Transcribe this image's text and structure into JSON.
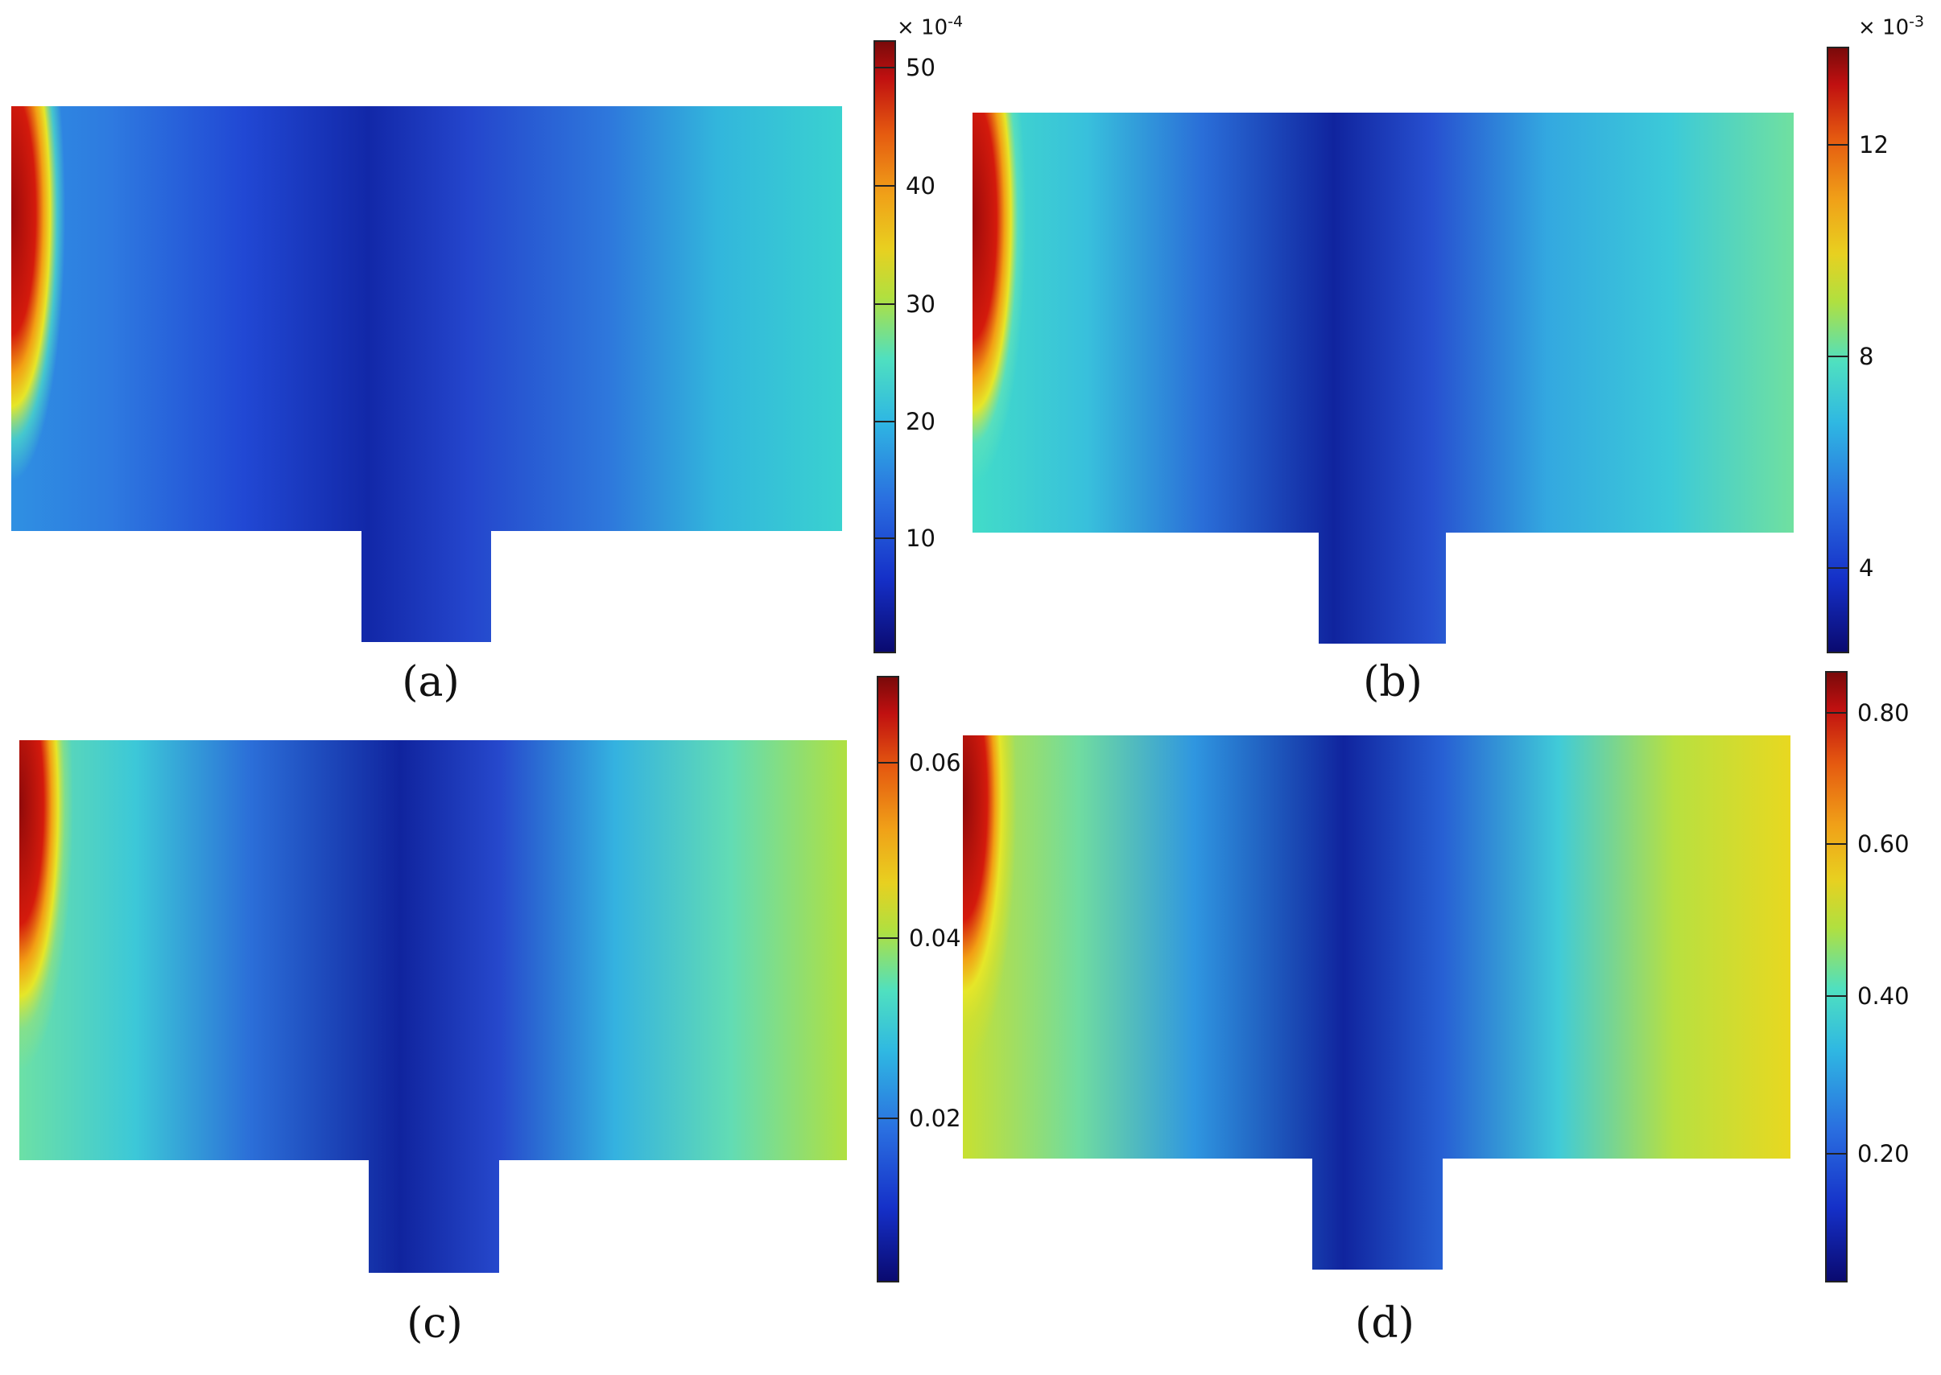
{
  "panels": [
    {
      "label": "(a)",
      "scale": {
        "exponent": "-4",
        "ticks": [
          {
            "text": "50",
            "frac": 0.955
          },
          {
            "text": "40",
            "frac": 0.762
          },
          {
            "text": "30",
            "frac": 0.57
          },
          {
            "text": "20",
            "frac": 0.378
          },
          {
            "text": "10",
            "frac": 0.188
          }
        ]
      }
    },
    {
      "label": "(b)",
      "scale": {
        "exponent": "-3",
        "ticks": [
          {
            "text": "12",
            "frac": 0.838
          },
          {
            "text": "8",
            "frac": 0.489
          },
          {
            "text": "4",
            "frac": 0.14
          }
        ]
      }
    },
    {
      "label": "(c)",
      "scale": {
        "exponent": null,
        "ticks": [
          {
            "text": "0.06",
            "frac": 0.857
          },
          {
            "text": "0.04",
            "frac": 0.568
          },
          {
            "text": "0.02",
            "frac": 0.271
          }
        ]
      }
    },
    {
      "label": "(d)",
      "scale": {
        "exponent": null,
        "ticks": [
          {
            "text": "0.80",
            "frac": 0.932
          },
          {
            "text": "0.60",
            "frac": 0.717
          },
          {
            "text": "0.40",
            "frac": 0.469
          },
          {
            "text": "0.20",
            "frac": 0.211
          }
        ]
      }
    }
  ]
}
